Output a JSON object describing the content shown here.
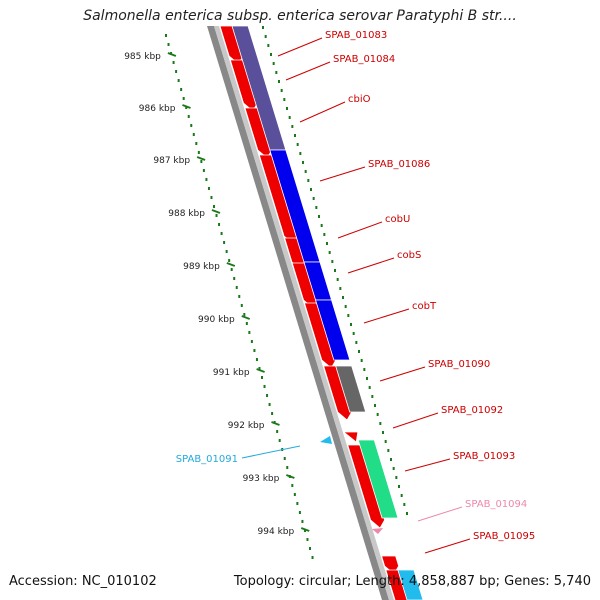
{
  "title": "Salmonella enterica subsp. enterica serovar Paratyphi B str....",
  "accession_label": "Accession: NC_010102",
  "stats_label": "Topology: circular; Length: 4,858,887 bp; Genes: 5,740",
  "colors": {
    "forward_gene": "#ee0000",
    "cog_purple": "#5a4f9a",
    "cog_blue": "#0000ee",
    "cog_gray": "#666666",
    "cog_green": "#22dd88",
    "cog_cyan": "#22bbee",
    "backbone": "#888888",
    "tick": "#1a7a1a",
    "gene_label": "#cc0000",
    "rna_label_cyan": "#22aadd",
    "rna_label_pink": "#ee88aa"
  },
  "ticks": [
    {
      "label": "985 kbp"
    },
    {
      "label": "986 kbp"
    },
    {
      "label": "987 kbp"
    },
    {
      "label": "988 kbp"
    },
    {
      "label": "989 kbp"
    },
    {
      "label": "990 kbp"
    },
    {
      "label": "991 kbp"
    },
    {
      "label": "992 kbp"
    },
    {
      "label": "993 kbp"
    },
    {
      "label": "994 kbp"
    }
  ],
  "genes": [
    {
      "name": "SPAB_01083",
      "color": "cog_purple",
      "label_color": "gene_label"
    },
    {
      "name": "SPAB_01084",
      "color": "cog_purple",
      "label_color": "gene_label"
    },
    {
      "name": "cbiO",
      "color": "cog_purple",
      "label_color": "gene_label"
    },
    {
      "name": "SPAB_01086",
      "color": "cog_blue",
      "label_color": "gene_label"
    },
    {
      "name": "cobU",
      "color": "cog_blue",
      "label_color": "gene_label"
    },
    {
      "name": "cobS",
      "color": "cog_blue",
      "label_color": "gene_label"
    },
    {
      "name": "cobT",
      "color": "cog_blue",
      "label_color": "gene_label"
    },
    {
      "name": "SPAB_01090",
      "color": "cog_gray",
      "label_color": "gene_label"
    },
    {
      "name": "SPAB_01092",
      "color": "cog_green",
      "label_color": "gene_label"
    },
    {
      "name": "SPAB_01093",
      "color": "cog_green",
      "label_color": "gene_label"
    },
    {
      "name": "SPAB_01094",
      "color": "",
      "label_color": "rna_label_pink"
    },
    {
      "name": "SPAB_01095",
      "color": "cog_cyan",
      "label_color": "gene_label"
    },
    {
      "name": "SPAB_01091",
      "color": "",
      "label_color": "rna_label_cyan"
    }
  ]
}
